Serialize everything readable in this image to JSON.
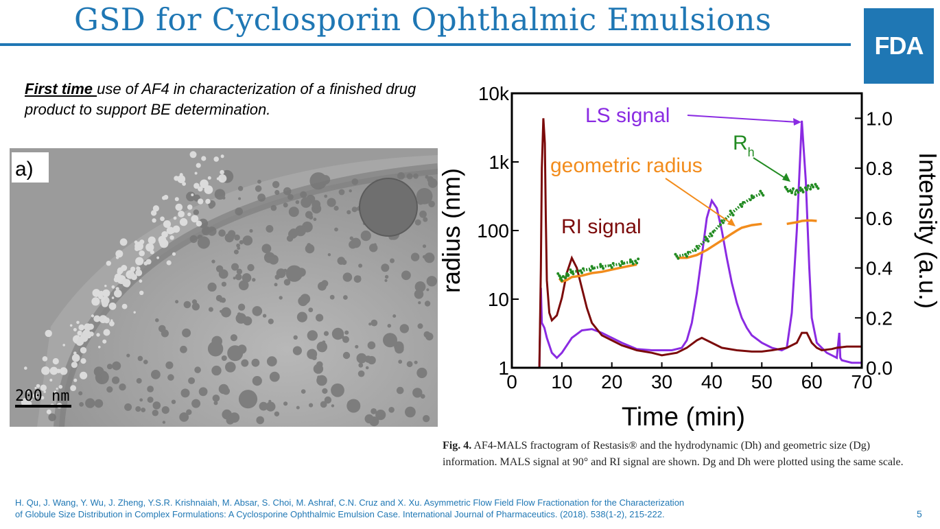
{
  "slide": {
    "title": "GSD for Cyclosporin Ophthalmic Emulsions",
    "logo_text": "FDA",
    "page_number": "5",
    "accent_color": "#1f77b4"
  },
  "intro": {
    "emphasis": "First time ",
    "rest": "use of AF4 in characterization of a finished drug product to support BE determination."
  },
  "micrograph": {
    "panel_label": "a)",
    "scale_label": "200 nm"
  },
  "caption": {
    "fig_label": "Fig. 4.",
    "text": "AF4-MALS fractogram of Restasis® and the hydrodynamic (Dh) and geometric size (Dg) information. MALS signal at 90° and RI signal are shown. Dg and Dh were plotted using the same scale."
  },
  "references": {
    "line1": "H. Qu, J. Wang, Y. Wu, J. Zheng, Y.S.R. Krishnaiah, M. Absar, S. Choi, M. Ashraf, C.N. Cruz and X. Xu. Asymmetric Flow Field Flow Fractionation for the Characterization",
    "line2": "of Globule Size Distribution in Complex Formulations: A Cyclosporine Ophthalmic Emulsion Case.  International Journal of Pharmaceutics. (2018). 538(1-2), 215-222."
  },
  "chart_data": {
    "type": "line",
    "xlabel": "Time (min)",
    "ylabel_left": "radius (nm)",
    "ylabel_right": "Intensity (a.u.)",
    "xlim": [
      0,
      70
    ],
    "x_ticks": [
      "0",
      "10",
      "20",
      "30",
      "40",
      "50",
      "60",
      "70"
    ],
    "ylim_left": [
      1,
      10000
    ],
    "y_left_scale": "log",
    "y_left_ticks": [
      "1",
      "10",
      "100",
      "1k",
      "10k"
    ],
    "ylim_right": [
      0,
      1.1
    ],
    "y_right_ticks": [
      "0.0",
      "0.2",
      "0.4",
      "0.6",
      "0.8",
      "1.0"
    ],
    "annotations": {
      "ls": "LS signal",
      "rh_main": "R",
      "rh_sub": "h",
      "geo": "geometric radius",
      "ri": "RI signal"
    },
    "colors": {
      "ls": "#8a2be2",
      "ri": "#7b0a0a",
      "geometric": "#f28c1c",
      "rh": "#228b22"
    },
    "series": [
      {
        "key": "ls",
        "axis": "right",
        "x": [
          5.5,
          5.8,
          6.0,
          6.5,
          7.0,
          8.0,
          9.0,
          10.0,
          12.0,
          14.0,
          16.0,
          18.0,
          20.0,
          22.0,
          25.0,
          28.0,
          30.0,
          32.0,
          34.0,
          35.0,
          36.0,
          37.0,
          38.0,
          39.0,
          40.0,
          41.0,
          42.0,
          43.0,
          44.0,
          45.0,
          46.0,
          47.0,
          48.0,
          50.0,
          52.0,
          54.0,
          55.0,
          56.0,
          57.0,
          58.0,
          58.8,
          59.5,
          60.0,
          61.0,
          62.0,
          63.0,
          64.0,
          65.0,
          65.5,
          65.7,
          66.0,
          68.0,
          70.0
        ],
        "y": [
          0.0,
          0.32,
          0.18,
          0.16,
          0.12,
          0.06,
          0.04,
          0.06,
          0.12,
          0.15,
          0.155,
          0.14,
          0.12,
          0.1,
          0.075,
          0.07,
          0.07,
          0.07,
          0.08,
          0.11,
          0.18,
          0.3,
          0.45,
          0.6,
          0.67,
          0.64,
          0.55,
          0.44,
          0.34,
          0.26,
          0.2,
          0.16,
          0.13,
          0.1,
          0.08,
          0.07,
          0.08,
          0.22,
          0.55,
          0.99,
          0.75,
          0.4,
          0.2,
          0.1,
          0.08,
          0.06,
          0.05,
          0.04,
          0.14,
          0.04,
          0.03,
          0.02,
          0.02
        ]
      },
      {
        "key": "ri",
        "axis": "right",
        "x": [
          5.5,
          5.8,
          6.0,
          6.3,
          6.6,
          6.8,
          7.0,
          7.5,
          8.0,
          9.0,
          10.0,
          11.0,
          12.0,
          13.0,
          14.0,
          15.0,
          16.0,
          18.0,
          20.0,
          22.0,
          25.0,
          28.0,
          30.0,
          33.0,
          35.0,
          37.0,
          38.0,
          40.0,
          42.0,
          45.0,
          48.0,
          50.0,
          52.0,
          55.0,
          57.0,
          58.0,
          59.0,
          60.0,
          61.0,
          62.0,
          64.0,
          65.0,
          67.0,
          70.0
        ],
        "y": [
          0.0,
          0.4,
          0.8,
          1.0,
          0.9,
          0.6,
          0.35,
          0.22,
          0.19,
          0.21,
          0.28,
          0.38,
          0.44,
          0.4,
          0.32,
          0.24,
          0.18,
          0.13,
          0.11,
          0.09,
          0.07,
          0.06,
          0.05,
          0.06,
          0.08,
          0.11,
          0.12,
          0.1,
          0.08,
          0.07,
          0.065,
          0.065,
          0.07,
          0.08,
          0.1,
          0.14,
          0.14,
          0.1,
          0.08,
          0.07,
          0.075,
          0.08,
          0.085,
          0.085
        ]
      },
      {
        "key": "geometric",
        "axis": "left",
        "segments": [
          {
            "x": [
              9.5,
              10.0,
              11.0,
              12.0,
              14.0,
              16.0,
              18.0,
              20.0,
              22.0,
              24.0,
              25.0
            ],
            "y": [
              20,
              18,
              19,
              21,
              22,
              24,
              25,
              27,
              29,
              31,
              32
            ]
          },
          {
            "x": [
              33.0,
              35.0,
              37.0,
              39.0,
              40.0,
              42.0,
              44.0,
              45.0,
              46.0,
              48.0,
              50.0
            ],
            "y": [
              40,
              40,
              44,
              52,
              58,
              72,
              90,
              100,
              110,
              120,
              125
            ]
          },
          {
            "x": [
              55.0,
              57.0,
              58.0,
              59.0,
              60.0,
              61.0
            ],
            "y": [
              125,
              132,
              138,
              140,
              140,
              138
            ]
          }
        ]
      },
      {
        "key": "rh",
        "axis": "left",
        "segments": [
          {
            "x": [
              9.5,
              10.0,
              11.0,
              12.0,
              14.0,
              16.0,
              18.0,
              20.0,
              22.0,
              24.0,
              25.0
            ],
            "y": [
              22,
              20,
              22,
              25,
              26,
              28,
              30,
              31,
              33,
              35,
              36
            ]
          },
          {
            "x": [
              33.0,
              35.0,
              37.0,
              39.0,
              40.0,
              42.0,
              44.0,
              46.0,
              48.0,
              50.0
            ],
            "y": [
              42,
              45,
              55,
              75,
              90,
              130,
              180,
              240,
              300,
              350
            ]
          },
          {
            "x": [
              55.0,
              56.0,
              57.0,
              58.0,
              59.0,
              60.0,
              61.0
            ],
            "y": [
              400,
              380,
              360,
              390,
              420,
              430,
              440
            ]
          }
        ]
      }
    ]
  }
}
